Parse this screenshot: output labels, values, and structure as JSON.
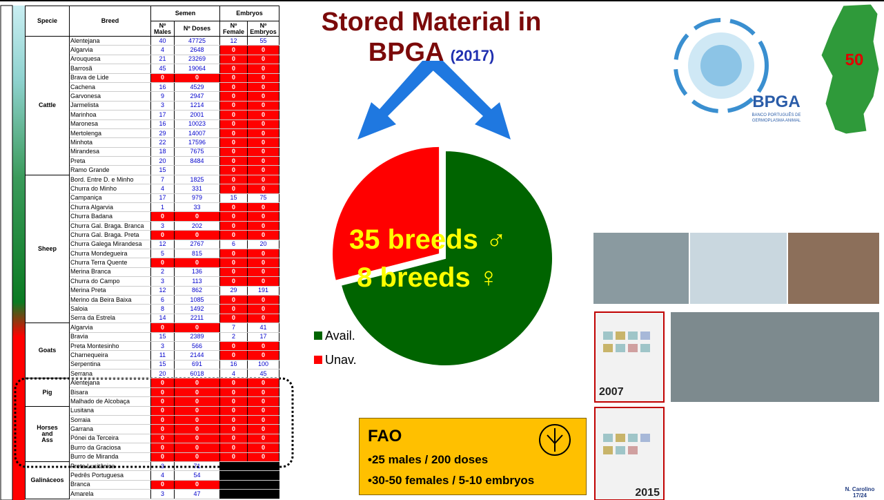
{
  "title": "Stored Material in BPGA",
  "title_year": "(2017)",
  "table": {
    "header": {
      "specie": "Specie",
      "breed": "Breed",
      "semen": "Semen",
      "embryos": "Embryos",
      "columns": [
        "Nº Males",
        "Nº Doses",
        "Nº Female",
        "Nº Embryos"
      ]
    },
    "groups": [
      {
        "specie": "Cattle",
        "rows": [
          [
            "Alentejana",
            40,
            47725,
            12,
            55
          ],
          [
            "Algarvia",
            4,
            2648,
            0,
            0
          ],
          [
            "Arouquesa",
            21,
            23269,
            0,
            0
          ],
          [
            "Barrosã",
            45,
            19064,
            0,
            0
          ],
          [
            "Brava de Lide",
            0,
            0,
            0,
            0
          ],
          [
            "Cachena",
            16,
            4529,
            0,
            0
          ],
          [
            "Garvonesa",
            9,
            2947,
            0,
            0
          ],
          [
            "Jarmelista",
            3,
            1214,
            0,
            0
          ],
          [
            "Marinhoa",
            17,
            2001,
            0,
            0
          ],
          [
            "Maronesa",
            16,
            10023,
            0,
            0
          ],
          [
            "Mertolenga",
            29,
            14007,
            0,
            0
          ],
          [
            "Minhota",
            22,
            17596,
            0,
            0
          ],
          [
            "Mirandesa",
            18,
            7675,
            0,
            0
          ],
          [
            "Preta",
            20,
            8484,
            0,
            0
          ],
          [
            "Ramo Grande",
            15,
            null,
            0,
            0
          ]
        ]
      },
      {
        "specie": "Sheep",
        "rows": [
          [
            "Bord. Entre D. e Minho",
            7,
            1825,
            0,
            0
          ],
          [
            "Churra do Minho",
            4,
            331,
            0,
            0
          ],
          [
            "Campaniça",
            17,
            979,
            15,
            75
          ],
          [
            "Churra Algarvia",
            1,
            33,
            0,
            0
          ],
          [
            "Churra Badana",
            0,
            0,
            0,
            0
          ],
          [
            "Churra Gal. Braga. Branca",
            3,
            202,
            0,
            0
          ],
          [
            "Churra Gal. Braga. Preta",
            0,
            0,
            0,
            0
          ],
          [
            "Churra Galega Mirandesa",
            12,
            2767,
            6,
            20
          ],
          [
            "Churra Mondegueira",
            5,
            815,
            0,
            0
          ],
          [
            "Churra Terra Quente",
            0,
            0,
            0,
            0
          ],
          [
            "Merina Branca",
            2,
            136,
            0,
            0
          ],
          [
            "Churra do Campo",
            3,
            113,
            0,
            0
          ],
          [
            "Merina Preta",
            12,
            862,
            29,
            191
          ],
          [
            "Merino da Beira Baixa",
            6,
            1085,
            0,
            0
          ],
          [
            "Saloia",
            8,
            1492,
            0,
            0
          ],
          [
            "Serra da Estrela",
            14,
            2211,
            0,
            0
          ]
        ]
      },
      {
        "specie": "Goats",
        "rows": [
          [
            "Algarvia",
            0,
            0,
            7,
            41
          ],
          [
            "Bravia",
            15,
            2389,
            2,
            17
          ],
          [
            "Preta Montesinho",
            3,
            566,
            0,
            0
          ],
          [
            "Charnequeira",
            11,
            2144,
            0,
            0
          ],
          [
            "Serpentina",
            15,
            691,
            16,
            100
          ],
          [
            "Serrana",
            20,
            6018,
            4,
            45
          ]
        ]
      },
      {
        "specie": "Pig",
        "rows": [
          [
            "Alentejana",
            0,
            0,
            0,
            0
          ],
          [
            "Bisara",
            0,
            0,
            0,
            0
          ],
          [
            "Malhado de Alcobaça",
            0,
            0,
            0,
            0
          ]
        ]
      },
      {
        "specie": "Horses and Ass",
        "rows": [
          [
            "Lusitana",
            0,
            0,
            0,
            0
          ],
          [
            "Sorraia",
            0,
            0,
            0,
            0
          ],
          [
            "Garrana",
            0,
            0,
            0,
            0
          ],
          [
            "Pónei da Terceira",
            0,
            0,
            0,
            0
          ],
          [
            "Burro da Graciosa",
            0,
            0,
            0,
            0
          ],
          [
            "Burro de Miranda",
            0,
            0,
            0,
            0
          ]
        ]
      },
      {
        "specie": "Galináceos",
        "rows": [
          [
            "Preta Lusitânica",
            3,
            71,
            null,
            null
          ],
          [
            "Pedrês Portuguesa",
            4,
            54,
            null,
            null
          ],
          [
            "Branca",
            0,
            0,
            null,
            null
          ],
          [
            "Amarela",
            3,
            47,
            null,
            null
          ]
        ]
      }
    ]
  },
  "chart_data": {
    "type": "pie",
    "categories": [
      "Avail.",
      "Unav."
    ],
    "values": [
      71,
      29
    ],
    "colors": [
      "#006400",
      "#ff0000"
    ],
    "annotations": [
      "35 breeds ♂",
      "8 breeds ♀"
    ]
  },
  "logo": {
    "name": "BPGA",
    "line1": "BANCO PORTUGUÊS DE",
    "line2": "GERMOPLASMA ANIMAL"
  },
  "map_label": "50",
  "books": [
    "2007",
    "2015"
  ],
  "fao": {
    "title": "FAO",
    "lines": [
      "•25 males / 200 doses",
      "•30-50 females / 5-10 embryos"
    ]
  },
  "footer": {
    "author": "N. Carolino",
    "page": "17/24"
  }
}
